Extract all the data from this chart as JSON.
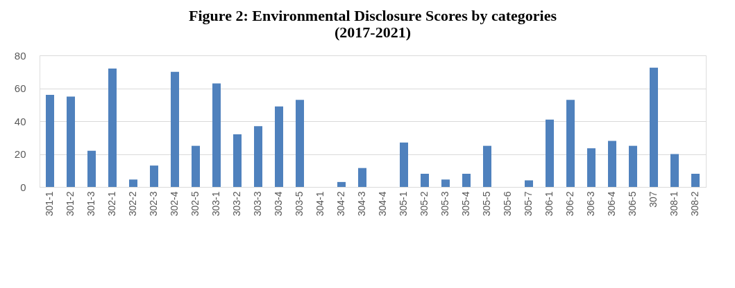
{
  "chart_data": {
    "type": "bar",
    "title": [
      "Figure 2: Environmental Disclosure Scores by categories",
      "(2017-2021)"
    ],
    "categories": [
      "301-1",
      "301-2",
      "301-3",
      "302-1",
      "302-2",
      "302-3",
      "302-4",
      "302-5",
      "303-1",
      "303-2",
      "303-3",
      "303-4",
      "303-5",
      "304-1",
      "304-2",
      "304-3",
      "304-4",
      "305-1",
      "305-2",
      "305-3",
      "305-4",
      "305-5",
      "305-6",
      "305-7",
      "306-1",
      "306-2",
      "306-3",
      "306-4",
      "306-5",
      "307",
      "308-1",
      "308-2"
    ],
    "values": [
      56,
      55,
      22,
      72,
      4.5,
      13,
      70,
      25,
      63,
      32,
      37,
      49,
      53,
      0,
      3,
      11.5,
      0,
      27,
      8,
      4.5,
      8,
      25,
      0,
      4,
      41,
      53,
      23.5,
      28,
      25,
      72.5,
      20,
      8
    ],
    "color": "#4f81bd",
    "ylim": [
      0,
      80
    ],
    "yticks": [
      0,
      20,
      40,
      60,
      80
    ],
    "grid": "y"
  }
}
